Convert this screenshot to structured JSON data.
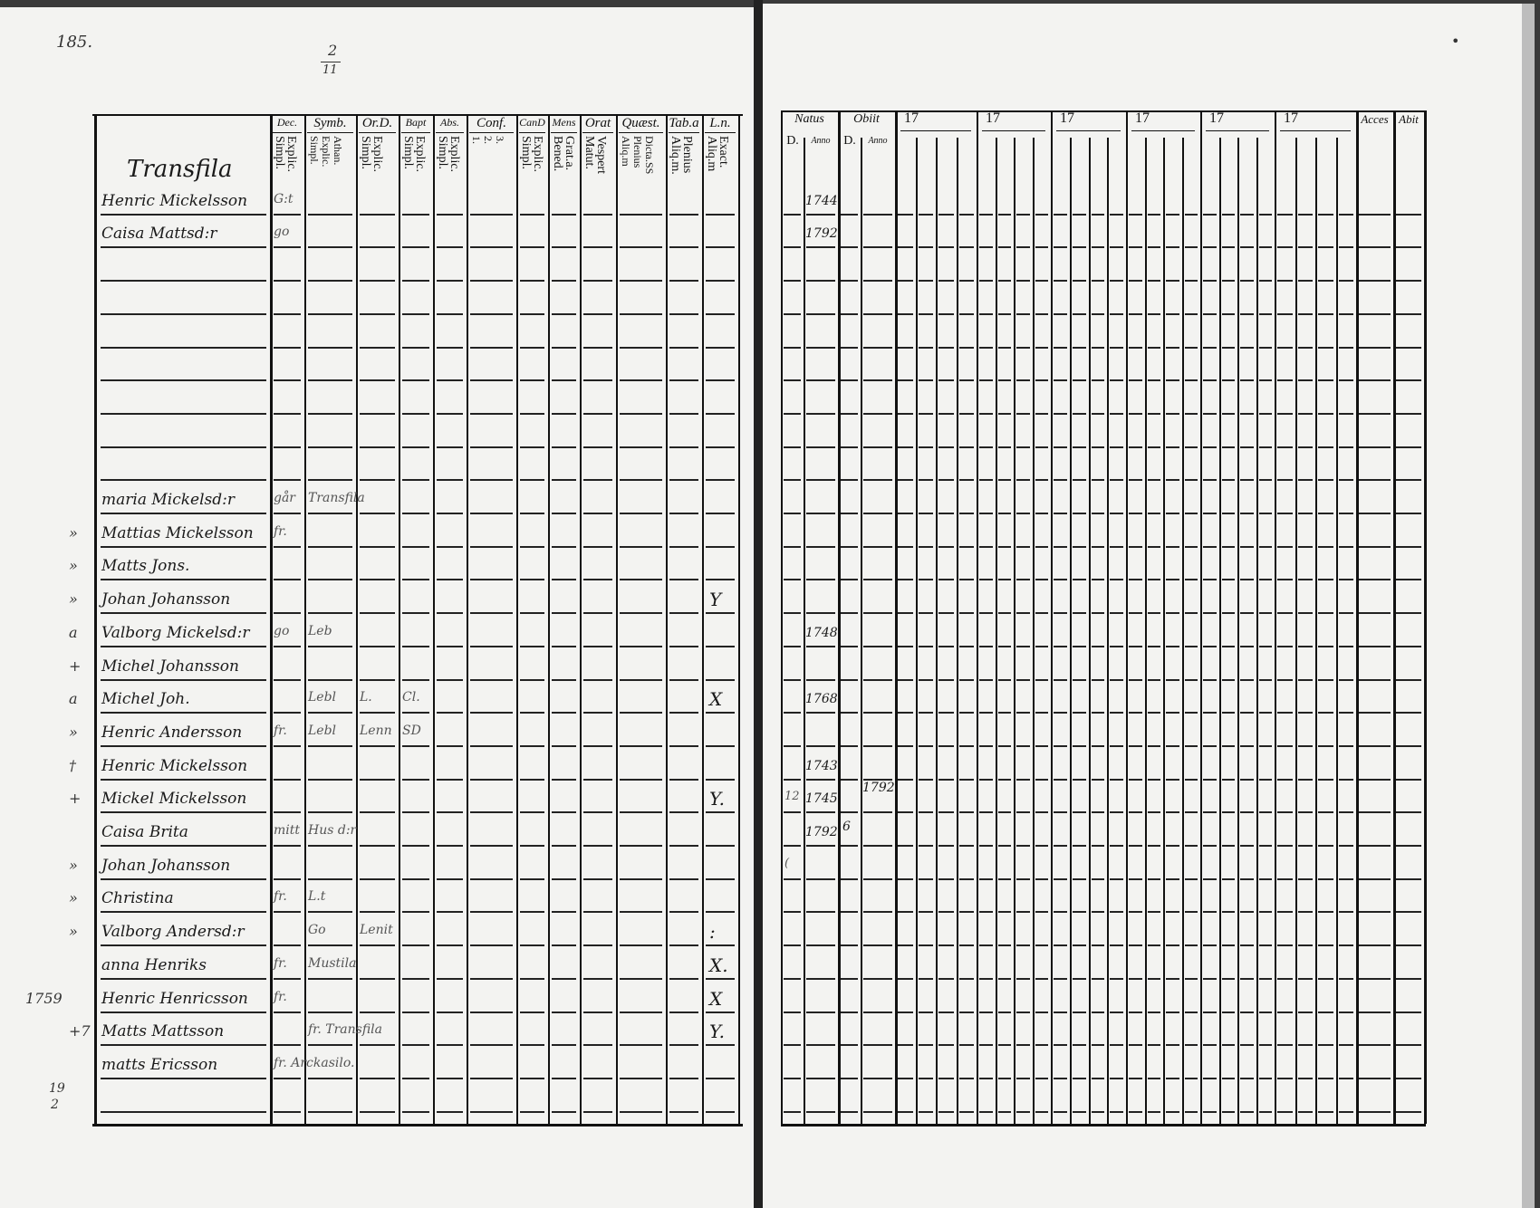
{
  "margin_notes": {
    "page_number": "185.",
    "fraction_top": "2",
    "fraction_bottom": "11",
    "bottom_note_top": "19",
    "bottom_note_bottom": "2",
    "dot": "•"
  },
  "left_page": {
    "section_title": "Transfila",
    "columns": [
      {
        "header": "Dec.",
        "sub": "Explic.\nSimpl."
      },
      {
        "header": "Symb.",
        "sub": "Athan.\nExplic.\nSimpl."
      },
      {
        "header": "Or.D.",
        "sub": "Explic.\nSimpl."
      },
      {
        "header": "Bapt",
        "sub": "Explic.\nSimpl."
      },
      {
        "header": "Abs.",
        "sub": "Explic.\nSimpl."
      },
      {
        "header": "Conf.",
        "sub": "3.\n2.\n1."
      },
      {
        "header": "CanD",
        "sub": "Explic.\nSimpl."
      },
      {
        "header": "Mens",
        "sub": "Grat.a.\nBened."
      },
      {
        "header": "Orat",
        "sub": "Vespert\nMatut."
      },
      {
        "header": "Quæst.",
        "sub": "Dicta.SS\nPlenius\nAliq.m"
      },
      {
        "header": "Tab.a",
        "sub": "Plenius\nAliq.m."
      },
      {
        "header": "L.n.",
        "sub": "Exact.\nAliq.m"
      }
    ],
    "rows": [
      {
        "mark": "",
        "name": "Henric Mickelsson",
        "cells": [
          "G:t"
        ]
      },
      {
        "mark": "",
        "name": "Caisa Mattsd:r",
        "cells": [
          "go"
        ]
      },
      {
        "mark": "",
        "name": "",
        "cells": []
      },
      {
        "mark": "",
        "name": "",
        "cells": []
      },
      {
        "mark": "",
        "name": "",
        "cells": []
      },
      {
        "mark": "",
        "name": "",
        "cells": []
      },
      {
        "mark": "",
        "name": "",
        "cells": []
      },
      {
        "mark": "",
        "name": "",
        "cells": []
      },
      {
        "mark": "",
        "name": "",
        "cells": []
      },
      {
        "mark": "",
        "name": "maria Mickelsd:r",
        "cells": [
          "går",
          "Transfila"
        ]
      },
      {
        "mark": "»",
        "name": "Mattias Mickelsson",
        "cells": [
          "fr."
        ]
      },
      {
        "mark": "»",
        "name": "Matts Jons.",
        "cells": []
      },
      {
        "mark": "»",
        "name": "Johan Johansson",
        "cells": [],
        "ln": "Y"
      },
      {
        "mark": "a",
        "name": "Valborg Mickelsd:r",
        "cells": [
          "go",
          "Leb"
        ]
      },
      {
        "mark": "+",
        "name": "Michel Johansson",
        "cells": []
      },
      {
        "mark": "a",
        "name": "Michel Joh.",
        "cells": [
          "",
          "Lebl",
          "L.",
          "Cl."
        ],
        "ln": "X"
      },
      {
        "mark": "»",
        "name": "Henric Andersson",
        "cells": [
          "fr.",
          "Lebl",
          "Lenn",
          "SD"
        ]
      },
      {
        "mark": "†",
        "name": "Henric Mickelsson",
        "cells": []
      },
      {
        "mark": "+",
        "name": "Mickel Mickelsson",
        "cells": [],
        "ln": "Y."
      },
      {
        "mark": "",
        "name": "Caisa Brita",
        "cells": [
          "mitt",
          "Hus d:r"
        ]
      },
      {
        "mark": "»",
        "name": "Johan Johansson",
        "cells": []
      },
      {
        "mark": "»",
        "name": "Christina",
        "cells": [
          "fr.",
          "L.t"
        ]
      },
      {
        "mark": "»",
        "name": "Valborg Andersd:r",
        "cells": [
          "",
          "Go",
          "Lenit"
        ],
        "ln": ":"
      },
      {
        "mark": "",
        "name": "anna Henriks",
        "cells": [
          "fr.",
          "Mustila"
        ],
        "ln": "X."
      },
      {
        "mark": "1759",
        "name": "Henric Henricsson",
        "cells": [
          "fr."
        ],
        "ln": "X"
      },
      {
        "mark": "+7",
        "name": "Matts Mattsson",
        "cells": [
          "",
          "fr. Transfila"
        ],
        "ln": "Y."
      },
      {
        "mark": "",
        "name": "matts Ericsson",
        "cells": [
          "fr. Arckasilo."
        ]
      },
      {
        "mark": "",
        "name": "",
        "cells": []
      }
    ]
  },
  "right_page": {
    "natus": {
      "header": "Natus",
      "day": "D.",
      "year": "Anno"
    },
    "obiit": {
      "header": "Obiit",
      "day": "D.",
      "year": "Anno"
    },
    "year_groups": [
      "17",
      "17",
      "17",
      "17",
      "17",
      "17"
    ],
    "acces": "Acces",
    "abit": "Abit",
    "entries": {
      "0": {
        "natus_year": "1744"
      },
      "1": {
        "natus_year": "1792"
      },
      "13": {
        "natus_year": "1748"
      },
      "15": {
        "natus_year": "1768"
      },
      "17": {
        "natus_year": "1743"
      },
      "18": {
        "natus_day": "12",
        "natus_year": "1745",
        "obiit_year": "1792"
      },
      "19": {
        "natus_year": "1792",
        "obiit_day": "6"
      },
      "20": {
        "natus_day": "("
      }
    }
  }
}
